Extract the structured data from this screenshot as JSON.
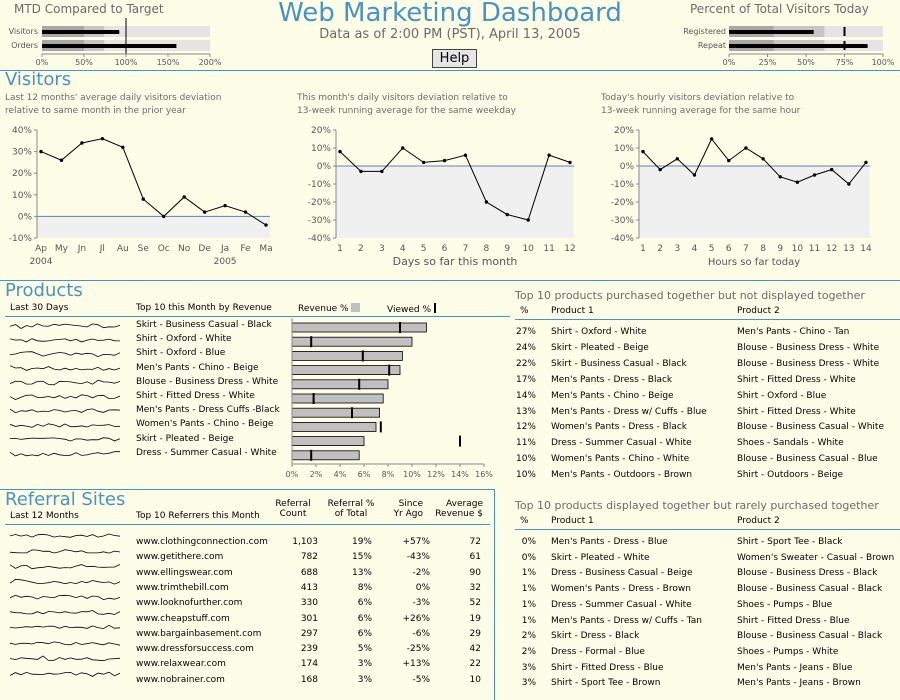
{
  "header": {
    "title": "Web Marketing Dashboard",
    "subtitle": "Data as of 2:00 PM (PST), April 13, 2005",
    "help_label": "Help"
  },
  "mtd": {
    "title": "MTD Compared to Target",
    "rows": [
      {
        "label": "Visitors",
        "value": 92
      },
      {
        "label": "Orders",
        "value": 160
      }
    ],
    "ticks": [
      "0%",
      "50%",
      "100%",
      "150%",
      "200%"
    ]
  },
  "percent_visitors": {
    "title": "Percent of Total Visitors Today",
    "rows": [
      {
        "label": "Registered",
        "value": 55
      },
      {
        "label": "Repeat",
        "value": 90
      }
    ],
    "ticks": [
      "0%",
      "25%",
      "50%",
      "75%",
      "100%"
    ]
  },
  "visitors": {
    "title": "Visitors",
    "chart1_caption": [
      "Last 12 months' average daily visitors deviation",
      "relative to same month in the prior year"
    ],
    "chart2_caption": [
      "This month's daily visitors deviation relative to",
      "13-week running average for the same weekday"
    ],
    "chart3_caption": [
      "Today's hourly visitors deviation relative to",
      "13-week running average for the same hour"
    ],
    "chart1_xlabel_years": [
      "2004",
      "2005"
    ],
    "chart2_xlabel": "Days so far this month",
    "chart3_xlabel": "Hours so far today"
  },
  "chart_data": [
    {
      "type": "line",
      "title": "Last 12 months' average daily visitors deviation relative to same month in the prior year",
      "categories": [
        "Ap",
        "My",
        "Jn",
        "Jl",
        "Au",
        "Se",
        "Oc",
        "No",
        "De",
        "Ja",
        "Fe",
        "Ma"
      ],
      "values": [
        30,
        26,
        34,
        36,
        32,
        8,
        0,
        9,
        2,
        5,
        2,
        -4
      ],
      "ylim": [
        -10,
        40
      ],
      "yticks": [
        "40%",
        "30%",
        "20%",
        "10%",
        "0%",
        "-10%"
      ]
    },
    {
      "type": "line",
      "title": "This month's daily visitors deviation relative to 13-week running average for the same weekday",
      "x": [
        "1",
        "2",
        "3",
        "4",
        "5",
        "6",
        "7",
        "8",
        "9",
        "10",
        "11",
        "12"
      ],
      "values": [
        8,
        -3,
        -3,
        10,
        2,
        3,
        6,
        -20,
        -27,
        -30,
        6,
        2
      ],
      "ylim": [
        -40,
        20
      ],
      "yticks": [
        "20%",
        "10%",
        "0%",
        "-10%",
        "-20%",
        "-30%",
        "-40%"
      ],
      "xlabel": "Days so far this month"
    },
    {
      "type": "line",
      "title": "Today's hourly visitors deviation relative to 13-week running average for the same hour",
      "x": [
        "1",
        "2",
        "3",
        "4",
        "5",
        "6",
        "7",
        "8",
        "9",
        "10",
        "11",
        "12",
        "13",
        "14"
      ],
      "values": [
        8,
        -2,
        4,
        -5,
        15,
        3,
        10,
        4,
        -6,
        -9,
        -5,
        -2,
        -10,
        2
      ],
      "ylim": [
        -40,
        20
      ],
      "yticks": [
        "20%",
        "10%",
        "0%",
        "-10%",
        "-20%",
        "-30%",
        "-40%"
      ],
      "xlabel": "Hours so far today"
    },
    {
      "type": "bar",
      "title": "Top 10 this Month by Revenue",
      "categories": [
        "Skirt - Business Casual - Black",
        "Shirt - Oxford - White",
        "Shirt - Oxford - Blue",
        "Men's Pants - Chino - Beige",
        "Blouse - Business Dress - White",
        "Shirt - Fitted Dress - White",
        "Men's Pants - Dress Cuffs -Black",
        "Women's Pants - Chino - Beige",
        "Skirt - Pleated - Beige",
        "Dress - Summer Casual - White"
      ],
      "series": [
        {
          "name": "Revenue %",
          "values": [
            11.2,
            10.0,
            9.2,
            9.0,
            8.0,
            7.6,
            7.3,
            7.0,
            6.0,
            5.6
          ]
        },
        {
          "name": "Viewed %",
          "values": [
            9.0,
            1.6,
            5.9,
            8.1,
            5.6,
            1.8,
            5.0,
            7.4,
            14.0,
            1.6
          ]
        }
      ],
      "ylim": [
        0,
        16
      ],
      "xticks": [
        "0%",
        "2%",
        "4%",
        "6%",
        "8%",
        "10%",
        "12%",
        "14%",
        "16%"
      ]
    }
  ],
  "products": {
    "title": "Products",
    "col_last30": "Last 30 Days",
    "col_top10": "Top 10 this Month by Revenue",
    "legend_revenue": "Revenue %",
    "legend_viewed": "Viewed %"
  },
  "not_displayed": {
    "title": "Top 10 products purchased together but not displayed together",
    "col_pct": "%",
    "col_p1": "Product 1",
    "col_p2": "Product 2",
    "rows": [
      {
        "pct": "27%",
        "p1": "Shirt - Oxford - White",
        "p2": "Men's Pants - Chino - Tan"
      },
      {
        "pct": "24%",
        "p1": "Skirt - Pleated - Beige",
        "p2": "Blouse - Business Dress - White"
      },
      {
        "pct": "22%",
        "p1": "Skirt - Business Casual - Black",
        "p2": "Blouse - Business Dress - White"
      },
      {
        "pct": "17%",
        "p1": "Men's Pants - Dress - Black",
        "p2": "Shirt - Fitted Dress - White"
      },
      {
        "pct": "14%",
        "p1": "Men's Pants - Chino - Beige",
        "p2": "Shirt - Oxford - Blue"
      },
      {
        "pct": "13%",
        "p1": "Men's Pants - Dress w/ Cuffs - Blue",
        "p2": "Shirt - Fitted Dress - White"
      },
      {
        "pct": "12%",
        "p1": "Women's Pants - Dress - Black",
        "p2": "Blouse - Business Casual - White"
      },
      {
        "pct": "11%",
        "p1": "Dress - Summer Casual - White",
        "p2": "Shoes - Sandals - White"
      },
      {
        "pct": "10%",
        "p1": "Women's Pants - Chino - White",
        "p2": "Blouse - Business Casual - Blue"
      },
      {
        "pct": "10%",
        "p1": "Men's Pants - Outdoors - Brown",
        "p2": "Shirt - Outdoors - Beige"
      }
    ]
  },
  "rarely_purchased": {
    "title": "Top 10 products displayed together but rarely purchased together",
    "col_pct": "%",
    "col_p1": "Product 1",
    "col_p2": "Product 2",
    "rows": [
      {
        "pct": "0%",
        "p1": "Men's Pants - Dress - Blue",
        "p2": "Shirt - Sport Tee - Black"
      },
      {
        "pct": "0%",
        "p1": "Skirt - Pleated - White",
        "p2": "Women's Sweater - Casual - Brown"
      },
      {
        "pct": "1%",
        "p1": "Dress - Business Casual - Beige",
        "p2": "Blouse - Business Dress - Black"
      },
      {
        "pct": "1%",
        "p1": "Women's Pants - Dress - Brown",
        "p2": "Blouse - Business Casual - Black"
      },
      {
        "pct": "1%",
        "p1": "Dress - Summer Casual - White",
        "p2": "Shoes - Pumps - Blue"
      },
      {
        "pct": "1%",
        "p1": "Men's Pants - Dress w/ Cuffs - Tan",
        "p2": "Shirt - Fitted Dress - Blue"
      },
      {
        "pct": "2%",
        "p1": "Skirt - Dress - Black",
        "p2": "Blouse - Business Casual - Black"
      },
      {
        "pct": "2%",
        "p1": "Dress - Formal - Blue",
        "p2": "Shoes - Pumps - White"
      },
      {
        "pct": "3%",
        "p1": "Shirt - Fitted Dress - Blue",
        "p2": "Men's Pants - Jeans - Blue"
      },
      {
        "pct": "3%",
        "p1": "Shirt - Sport Tee - Brown",
        "p2": "Men's Pants - Jeans - Brown"
      }
    ]
  },
  "referrals": {
    "title": "Referral Sites",
    "col_last12": "Last 12 Months",
    "col_top10": "Top 10 Referrers this Month",
    "col_count": [
      "Referral",
      "Count"
    ],
    "col_pct": [
      "Referral %",
      "of Total"
    ],
    "col_since": [
      "Since",
      "Yr Ago"
    ],
    "col_avg": [
      "Average",
      "Revenue $"
    ],
    "rows": [
      {
        "site": "www.clothingconnection.com",
        "count": "1,103",
        "pct": "19%",
        "since": "+57%",
        "avg": "72"
      },
      {
        "site": "www.getithere.com",
        "count": "782",
        "pct": "15%",
        "since": "-43%",
        "avg": "61"
      },
      {
        "site": "www.ellingswear.com",
        "count": "688",
        "pct": "13%",
        "since": "-2%",
        "avg": "90"
      },
      {
        "site": "www.trimthebill.com",
        "count": "413",
        "pct": "8%",
        "since": "0%",
        "avg": "32"
      },
      {
        "site": "www.looknofurther.com",
        "count": "330",
        "pct": "6%",
        "since": "-3%",
        "avg": "52"
      },
      {
        "site": "www.cheapstuff.com",
        "count": "301",
        "pct": "6%",
        "since": "+26%",
        "avg": "19"
      },
      {
        "site": "www.bargainbasement.com",
        "count": "297",
        "pct": "6%",
        "since": "-6%",
        "avg": "29"
      },
      {
        "site": "www.dressforsuccess.com",
        "count": "239",
        "pct": "5%",
        "since": "-25%",
        "avg": "42"
      },
      {
        "site": "www.relaxwear.com",
        "count": "174",
        "pct": "3%",
        "since": "+13%",
        "avg": "22"
      },
      {
        "site": "www.nobrainer.com",
        "count": "168",
        "pct": "3%",
        "since": "-5%",
        "avg": "10"
      }
    ]
  },
  "colors": {
    "accent": "#4a92c2",
    "background": "#fefee8",
    "bar_fill": "#c0c0c0",
    "band_light": "#e4e4e4",
    "band_dark": "#a8a8a8",
    "chart_neg_band": "#f0f0f0"
  }
}
